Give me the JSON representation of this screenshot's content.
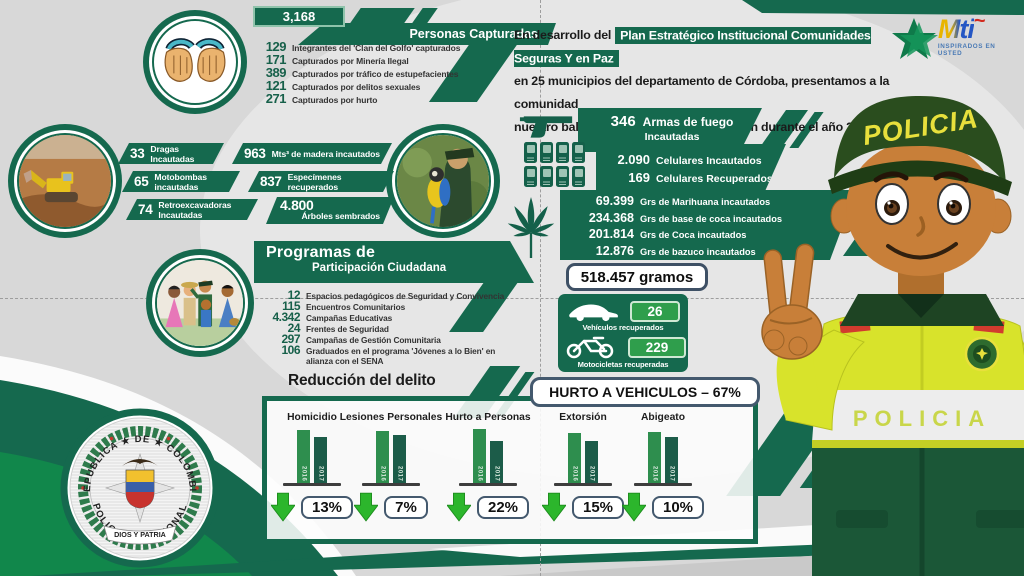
{
  "brand": {
    "name": "Mti",
    "tagline": "INSPIRADOS EN USTED"
  },
  "intro": {
    "line1_pre": "En desarrollo del",
    "line1_highlight": "Plan Estratégico Institucional Comunidades Seguras Y en Paz",
    "line2": "en 25 municipios del departamento de Córdoba, presentamos a la comunidad",
    "line3": "nuestro balance operativo y de prevención durante el año 2017."
  },
  "captures": {
    "total": "3,168",
    "title": "Personas Capturadas",
    "items": [
      {
        "value": "129",
        "label": "Integrantes del 'Clan del Golfo' capturados"
      },
      {
        "value": "171",
        "label": "Capturados por Minería Ilegal"
      },
      {
        "value": "389",
        "label": "Capturados por tráfico de estupefacientes"
      },
      {
        "value": "121",
        "label": "Capturados por delitos sexuales"
      },
      {
        "value": "271",
        "label": "Capturados por hurto"
      }
    ]
  },
  "environment": {
    "left": [
      {
        "value": "33",
        "label": "Dragas Incautadas"
      },
      {
        "value": "65",
        "label": "Motobombas incautadas"
      },
      {
        "value": "74",
        "label": "Retroexcavadoras Incautadas"
      }
    ],
    "right": [
      {
        "value": "963",
        "label": "Mts³ de madera incautados"
      },
      {
        "value": "837",
        "label": "Especímenes recuperados"
      },
      {
        "value": "4.800",
        "label": "Árboles sembrados"
      }
    ]
  },
  "programs": {
    "title1": "Programas de",
    "title2": "Participación Ciudadana",
    "items": [
      {
        "value": "12",
        "label": "Espacios pedagógicos de Seguridad y Convivencia"
      },
      {
        "value": "115",
        "label": "Encuentros Comunitarios"
      },
      {
        "value": "4.342",
        "label": "Campañas Educativas"
      },
      {
        "value": "24",
        "label": "Frentes de Seguridad"
      },
      {
        "value": "297",
        "label": "Campañas de Gestión Comunitaria"
      },
      {
        "value": "106",
        "label": "Graduados en el programa 'Jóvenes a lo Bien' en alianza con el SENA"
      }
    ]
  },
  "firearms": {
    "value": "346",
    "label1": "Armas de fuego",
    "label2": "Incautadas"
  },
  "phones": {
    "items": [
      {
        "value": "2.090",
        "label": "Celulares Incautados"
      },
      {
        "value": "169",
        "label": "Celulares Recuperados"
      }
    ]
  },
  "drugs": {
    "items": [
      {
        "value": "69.399",
        "label": "Grs de Marihuana incautados"
      },
      {
        "value": "234.368",
        "label": "Grs de base de coca incautados"
      },
      {
        "value": "201.814",
        "label": "Grs de Coca incautados"
      },
      {
        "value": "12.876",
        "label": "Grs de bazuco incautados"
      }
    ],
    "total": "518.457 gramos"
  },
  "vehicles": {
    "items": [
      {
        "value": "26",
        "label": "Vehículos recuperados"
      },
      {
        "value": "229",
        "label": "Motocicletas recuperadas"
      }
    ]
  },
  "chart_data": {
    "type": "bar",
    "title": "Reducción del delito",
    "callout": "HURTO A VEHICULOS – 67%",
    "categories": [
      "Homicidio",
      "Lesiones Personales",
      "Hurto a Personas",
      "Extorsión",
      "Abigeato"
    ],
    "series": [
      {
        "name": "2016",
        "values": [
          53,
          52,
          54,
          50,
          51
        ]
      },
      {
        "name": "2017",
        "values": [
          46,
          48,
          42,
          42,
          46
        ]
      }
    ],
    "reductions": [
      "13%",
      "7%",
      "22%",
      "15%",
      "10%"
    ],
    "note": "No numeric axis shown; series values are relative bar heights (px) read from the image. Reductions are the labeled year-over-year decreases.",
    "xlabel": "",
    "ylabel": "",
    "legend_position": "year labels inside bars"
  },
  "emblem": {
    "arc_top": "★ REPUBLICA ★ DE ★ COLOMBIA ★",
    "arc_bottom": "POLICIA ★ NACIONAL",
    "banner": "DIOS Y PATRIA"
  },
  "mascot": {
    "cap_text": "POLICIA",
    "vest_text": "POLICIA"
  },
  "icons": {
    "captures": "handcuffs-icon",
    "firearms": "pistol-icon",
    "phones": "cellphone-icon",
    "drugs": "cannabis-leaf-icon",
    "vehicle": "car-icon",
    "motorcycle": "motorcycle-icon",
    "reduction": "down-arrow-icon",
    "brand": "star-icon"
  },
  "colors": {
    "green_dark": "#15694e",
    "green_mid": "#2e8e4e",
    "green_bright": "#2cb62c",
    "vest_yellow": "#d8e32b",
    "box_border": "#44596e",
    "background": "#d8d8d8"
  }
}
